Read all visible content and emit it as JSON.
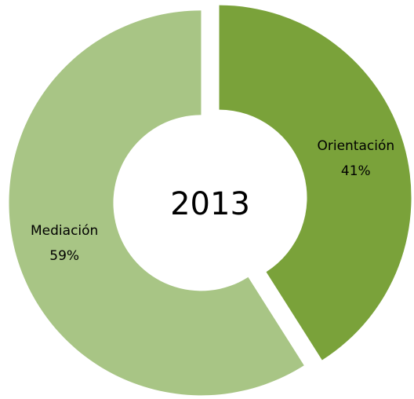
{
  "chart_data": {
    "type": "donut",
    "title": "2013",
    "categories": [
      "Orientación",
      "Mediación"
    ],
    "values": [
      41,
      59
    ],
    "value_labels": [
      "41%",
      "59%"
    ],
    "colors": [
      "#7aa23a",
      "#a8c585"
    ]
  }
}
